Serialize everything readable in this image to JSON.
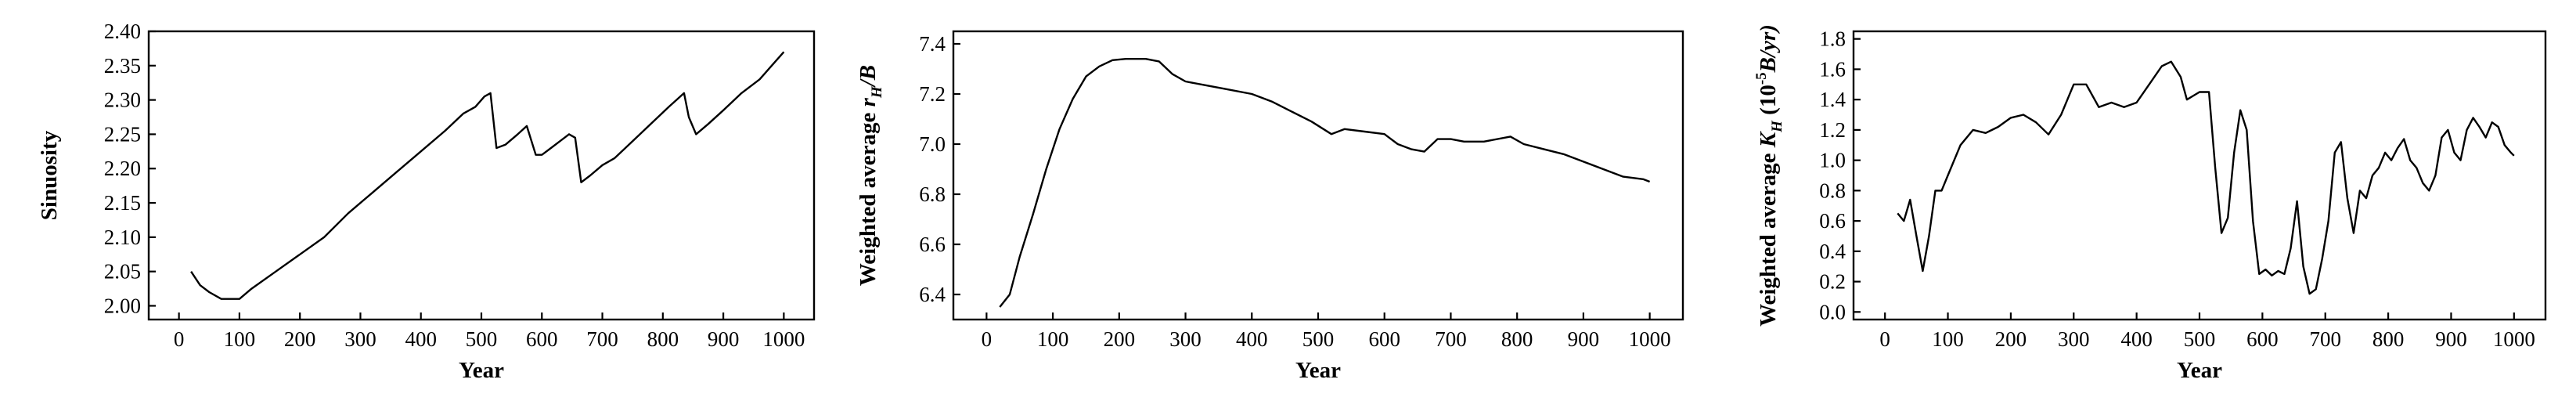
{
  "chart_data": [
    {
      "type": "line",
      "title": "",
      "xlabel": "Year",
      "ylabel": "Sinuosity",
      "xlim": [
        -50,
        1050
      ],
      "ylim": [
        1.98,
        2.4
      ],
      "xticks": [
        0,
        100,
        200,
        300,
        400,
        500,
        600,
        700,
        800,
        900,
        1000
      ],
      "yticks": [
        2.0,
        2.05,
        2.1,
        2.15,
        2.2,
        2.25,
        2.3,
        2.35,
        2.4
      ],
      "ytick_labels": [
        "2.00",
        "2.05",
        "2.10",
        "2.15",
        "2.20",
        "2.25",
        "2.30",
        "2.35",
        "2.40"
      ],
      "grid": false,
      "series": [
        {
          "x": [
            20,
            35,
            50,
            70,
            85,
            100,
            120,
            160,
            200,
            240,
            280,
            320,
            360,
            400,
            440,
            470,
            490,
            505,
            515,
            525,
            540,
            560,
            575,
            590,
            600,
            615,
            630,
            645,
            655,
            665,
            680,
            700,
            720,
            750,
            780,
            810,
            835,
            843,
            855,
            875,
            900,
            930,
            960,
            980,
            1000
          ],
          "y": [
            2.05,
            2.03,
            2.02,
            2.01,
            2.01,
            2.01,
            2.025,
            2.05,
            2.075,
            2.1,
            2.135,
            2.165,
            2.195,
            2.225,
            2.255,
            2.28,
            2.29,
            2.305,
            2.31,
            2.23,
            2.235,
            2.25,
            2.262,
            2.22,
            2.22,
            2.23,
            2.24,
            2.25,
            2.245,
            2.18,
            2.19,
            2.205,
            2.215,
            2.24,
            2.265,
            2.29,
            2.31,
            2.275,
            2.25,
            2.265,
            2.285,
            2.31,
            2.33,
            2.35,
            2.37
          ]
        }
      ]
    },
    {
      "type": "line",
      "title": "",
      "xlabel": "Year",
      "ylabel": "Weighted average r",
      "ylabel_sub": "H",
      "ylabel_tail": "/B",
      "xlim": [
        -50,
        1050
      ],
      "ylim": [
        6.3,
        7.45
      ],
      "xticks": [
        0,
        100,
        200,
        300,
        400,
        500,
        600,
        700,
        800,
        900,
        1000
      ],
      "yticks": [
        6.4,
        6.6,
        6.8,
        7.0,
        7.2,
        7.4
      ],
      "ytick_labels": [
        "6.4",
        "6.6",
        "6.8",
        "7.0",
        "7.2",
        "7.4"
      ],
      "grid": false,
      "series": [
        {
          "x": [
            20,
            35,
            50,
            70,
            90,
            110,
            130,
            150,
            170,
            190,
            210,
            240,
            260,
            280,
            300,
            330,
            360,
            400,
            430,
            460,
            490,
            520,
            540,
            570,
            600,
            620,
            640,
            660,
            680,
            700,
            720,
            750,
            790,
            810,
            840,
            870,
            900,
            930,
            960,
            990,
            1000
          ],
          "y": [
            6.35,
            6.4,
            6.55,
            6.72,
            6.9,
            7.06,
            7.18,
            7.27,
            7.31,
            7.335,
            7.34,
            7.34,
            7.33,
            7.28,
            7.25,
            7.235,
            7.22,
            7.2,
            7.17,
            7.13,
            7.09,
            7.04,
            7.06,
            7.05,
            7.04,
            7.0,
            6.98,
            6.97,
            7.02,
            7.02,
            7.01,
            7.01,
            7.03,
            7.0,
            6.98,
            6.96,
            6.93,
            6.9,
            6.87,
            6.86,
            6.85
          ]
        }
      ]
    },
    {
      "type": "line",
      "title": "",
      "xlabel": "Year",
      "ylabel": "Weighted average K",
      "ylabel_sub": "H",
      "ylabel_tail": " (10",
      "ylabel_sup": "-5",
      "ylabel_end": "B/yr)",
      "xlim": [
        -50,
        1050
      ],
      "ylim": [
        -0.05,
        1.85
      ],
      "xticks": [
        0,
        100,
        200,
        300,
        400,
        500,
        600,
        700,
        800,
        900,
        1000
      ],
      "yticks": [
        0.0,
        0.2,
        0.4,
        0.6,
        0.8,
        1.0,
        1.2,
        1.4,
        1.6,
        1.8
      ],
      "ytick_labels": [
        "0.0",
        "0.2",
        "0.4",
        "0.6",
        "0.8",
        "1.0",
        "1.2",
        "1.4",
        "1.6",
        "1.8"
      ],
      "grid": false,
      "series": [
        {
          "x": [
            20,
            30,
            40,
            50,
            60,
            70,
            80,
            90,
            100,
            120,
            140,
            160,
            180,
            200,
            220,
            240,
            260,
            280,
            300,
            320,
            340,
            360,
            380,
            400,
            420,
            440,
            455,
            470,
            480,
            500,
            515,
            525,
            535,
            545,
            555,
            565,
            575,
            585,
            595,
            605,
            615,
            625,
            635,
            645,
            655,
            665,
            675,
            685,
            695,
            705,
            715,
            725,
            735,
            745,
            755,
            765,
            775,
            785,
            795,
            805,
            815,
            825,
            835,
            845,
            855,
            865,
            875,
            885,
            895,
            905,
            915,
            925,
            935,
            945,
            955,
            965,
            975,
            985,
            995,
            1000
          ],
          "y": [
            0.65,
            0.6,
            0.74,
            0.5,
            0.27,
            0.5,
            0.8,
            0.8,
            0.9,
            1.1,
            1.2,
            1.18,
            1.22,
            1.28,
            1.3,
            1.25,
            1.17,
            1.3,
            1.5,
            1.5,
            1.35,
            1.38,
            1.35,
            1.38,
            1.5,
            1.62,
            1.65,
            1.55,
            1.4,
            1.45,
            1.45,
            0.95,
            0.52,
            0.62,
            1.05,
            1.33,
            1.2,
            0.6,
            0.25,
            0.28,
            0.24,
            0.27,
            0.25,
            0.42,
            0.73,
            0.3,
            0.12,
            0.15,
            0.35,
            0.6,
            1.05,
            1.12,
            0.75,
            0.52,
            0.8,
            0.75,
            0.9,
            0.95,
            1.05,
            1.0,
            1.08,
            1.14,
            1.0,
            0.95,
            0.85,
            0.8,
            0.9,
            1.15,
            1.2,
            1.05,
            1.0,
            1.2,
            1.28,
            1.22,
            1.15,
            1.25,
            1.22,
            1.1,
            1.05,
            1.03
          ]
        }
      ]
    }
  ]
}
